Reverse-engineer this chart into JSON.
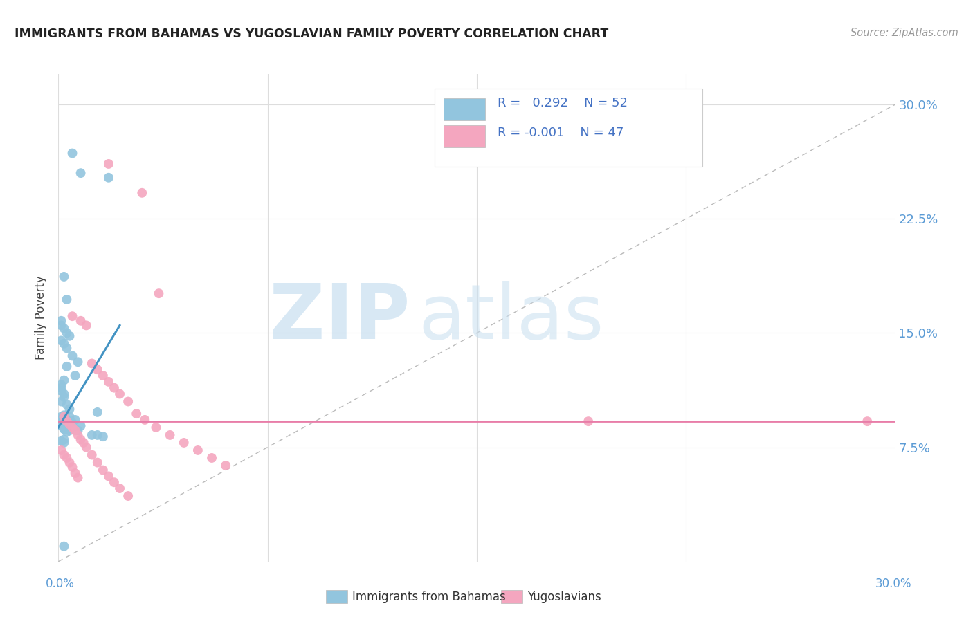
{
  "title": "IMMIGRANTS FROM BAHAMAS VS YUGOSLAVIAN FAMILY POVERTY CORRELATION CHART",
  "source": "Source: ZipAtlas.com",
  "ylabel": "Family Poverty",
  "yticks": [
    "7.5%",
    "15.0%",
    "22.5%",
    "30.0%"
  ],
  "ytick_vals": [
    0.075,
    0.15,
    0.225,
    0.3
  ],
  "xlim": [
    0.0,
    0.3
  ],
  "ylim": [
    0.0,
    0.32
  ],
  "legend_labels": [
    "Immigrants from Bahamas",
    "Yugoslavians"
  ],
  "blue_color": "#92c5de",
  "pink_color": "#f4a6bf",
  "blue_line_color": "#4393c3",
  "pink_line_color": "#e87da8",
  "watermark_zip": "ZIP",
  "watermark_atlas": "atlas",
  "background_color": "#ffffff",
  "grid_color": "#dddddd",
  "blue_scatter_x": [
    0.005,
    0.008,
    0.018,
    0.002,
    0.003,
    0.001,
    0.001,
    0.002,
    0.003,
    0.004,
    0.001,
    0.002,
    0.003,
    0.005,
    0.007,
    0.003,
    0.006,
    0.002,
    0.001,
    0.001,
    0.001,
    0.002,
    0.002,
    0.001,
    0.003,
    0.004,
    0.014,
    0.002,
    0.006,
    0.008,
    0.012,
    0.004,
    0.003,
    0.005,
    0.001,
    0.002,
    0.007,
    0.003,
    0.014,
    0.016,
    0.002,
    0.001,
    0.002,
    0.001,
    0.001,
    0.001,
    0.001,
    0.001,
    0.003,
    0.002,
    0.004,
    0.002
  ],
  "blue_scatter_y": [
    0.268,
    0.255,
    0.252,
    0.187,
    0.172,
    0.158,
    0.155,
    0.153,
    0.15,
    0.148,
    0.145,
    0.143,
    0.14,
    0.135,
    0.131,
    0.128,
    0.122,
    0.119,
    0.116,
    0.114,
    0.112,
    0.11,
    0.108,
    0.105,
    0.103,
    0.1,
    0.098,
    0.096,
    0.093,
    0.089,
    0.083,
    0.095,
    0.093,
    0.091,
    0.089,
    0.087,
    0.086,
    0.085,
    0.083,
    0.082,
    0.08,
    0.079,
    0.078,
    0.095,
    0.093,
    0.091,
    0.09,
    0.089,
    0.088,
    0.087,
    0.086,
    0.01
  ],
  "pink_scatter_x": [
    0.018,
    0.03,
    0.036,
    0.005,
    0.008,
    0.01,
    0.012,
    0.014,
    0.016,
    0.018,
    0.02,
    0.022,
    0.025,
    0.028,
    0.031,
    0.035,
    0.04,
    0.045,
    0.05,
    0.055,
    0.06,
    0.002,
    0.003,
    0.004,
    0.005,
    0.006,
    0.007,
    0.008,
    0.009,
    0.01,
    0.012,
    0.014,
    0.016,
    0.018,
    0.02,
    0.022,
    0.025,
    0.19,
    0.29,
    0.001,
    0.002,
    0.003,
    0.004,
    0.005,
    0.006,
    0.007
  ],
  "pink_scatter_y": [
    0.261,
    0.242,
    0.176,
    0.161,
    0.158,
    0.155,
    0.13,
    0.126,
    0.122,
    0.118,
    0.114,
    0.11,
    0.105,
    0.097,
    0.093,
    0.088,
    0.083,
    0.078,
    0.073,
    0.068,
    0.063,
    0.095,
    0.092,
    0.09,
    0.088,
    0.086,
    0.083,
    0.08,
    0.078,
    0.075,
    0.07,
    0.065,
    0.06,
    0.056,
    0.052,
    0.048,
    0.043,
    0.092,
    0.092,
    0.073,
    0.07,
    0.068,
    0.065,
    0.062,
    0.058,
    0.055
  ],
  "blue_trend_x": [
    0.0,
    0.022
  ],
  "blue_trend_y": [
    0.088,
    0.155
  ],
  "pink_trend_y_val": 0.092,
  "dashed_line_x": [
    0.0,
    0.3
  ],
  "dashed_line_y": [
    0.0,
    0.3
  ]
}
